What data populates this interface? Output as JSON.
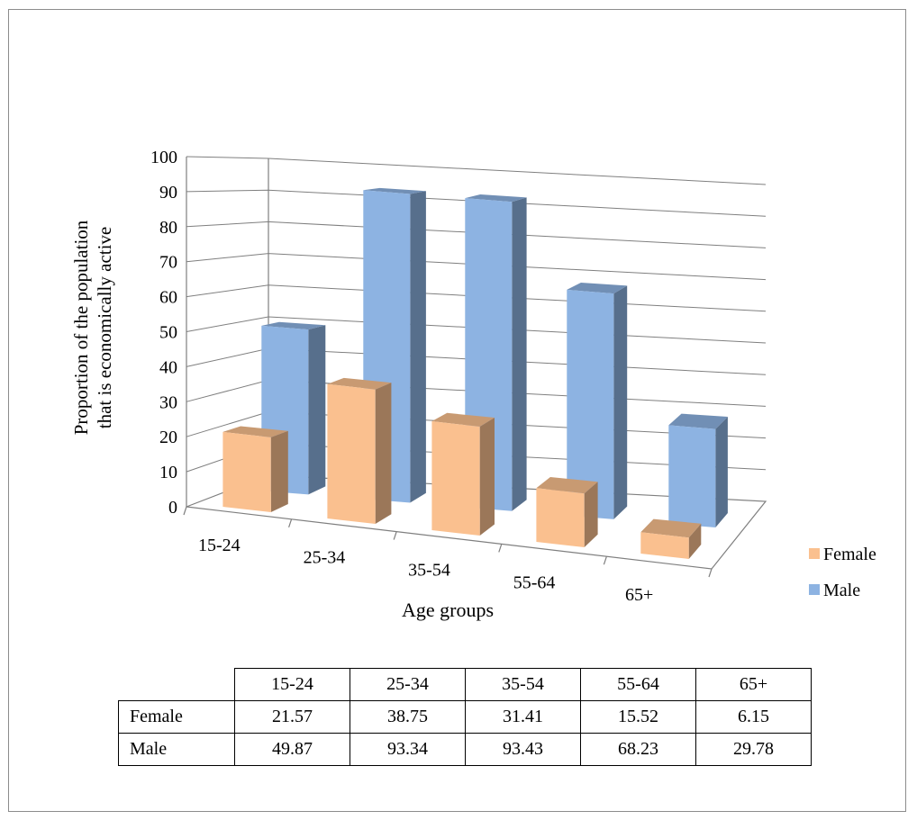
{
  "chart_data": {
    "type": "bar",
    "title": "",
    "xlabel": "Age groups",
    "ylabel": [
      "Proportion of the population",
      "that is economically active"
    ],
    "ylim": [
      0,
      100
    ],
    "yticks": [
      "0",
      "10",
      "20",
      "30",
      "40",
      "50",
      "60",
      "70",
      "80",
      "90",
      "100"
    ],
    "categories": [
      "15-24",
      "25-34",
      "35-54",
      "55-64",
      "65+"
    ],
    "series": [
      {
        "name": "Female",
        "values": [
          21.57,
          38.75,
          31.41,
          15.52,
          6.15
        ],
        "color": "#fac08f"
      },
      {
        "name": "Male",
        "values": [
          49.87,
          93.34,
          93.43,
          68.23,
          29.78
        ],
        "color": "#8db3e2"
      }
    ],
    "legend": "right",
    "grid": true,
    "style": "3d-clustered-column"
  },
  "table": {
    "header": [
      "",
      "15-24",
      "25-34",
      "35-54",
      "55-64",
      "65+"
    ],
    "rows": [
      {
        "label": "Female",
        "values": [
          "21.57",
          "38.75",
          "31.41",
          "15.52",
          "6.15"
        ]
      },
      {
        "label": "Male",
        "values": [
          "49.87",
          "93.34",
          "93.43",
          "68.23",
          "29.78"
        ]
      }
    ]
  }
}
